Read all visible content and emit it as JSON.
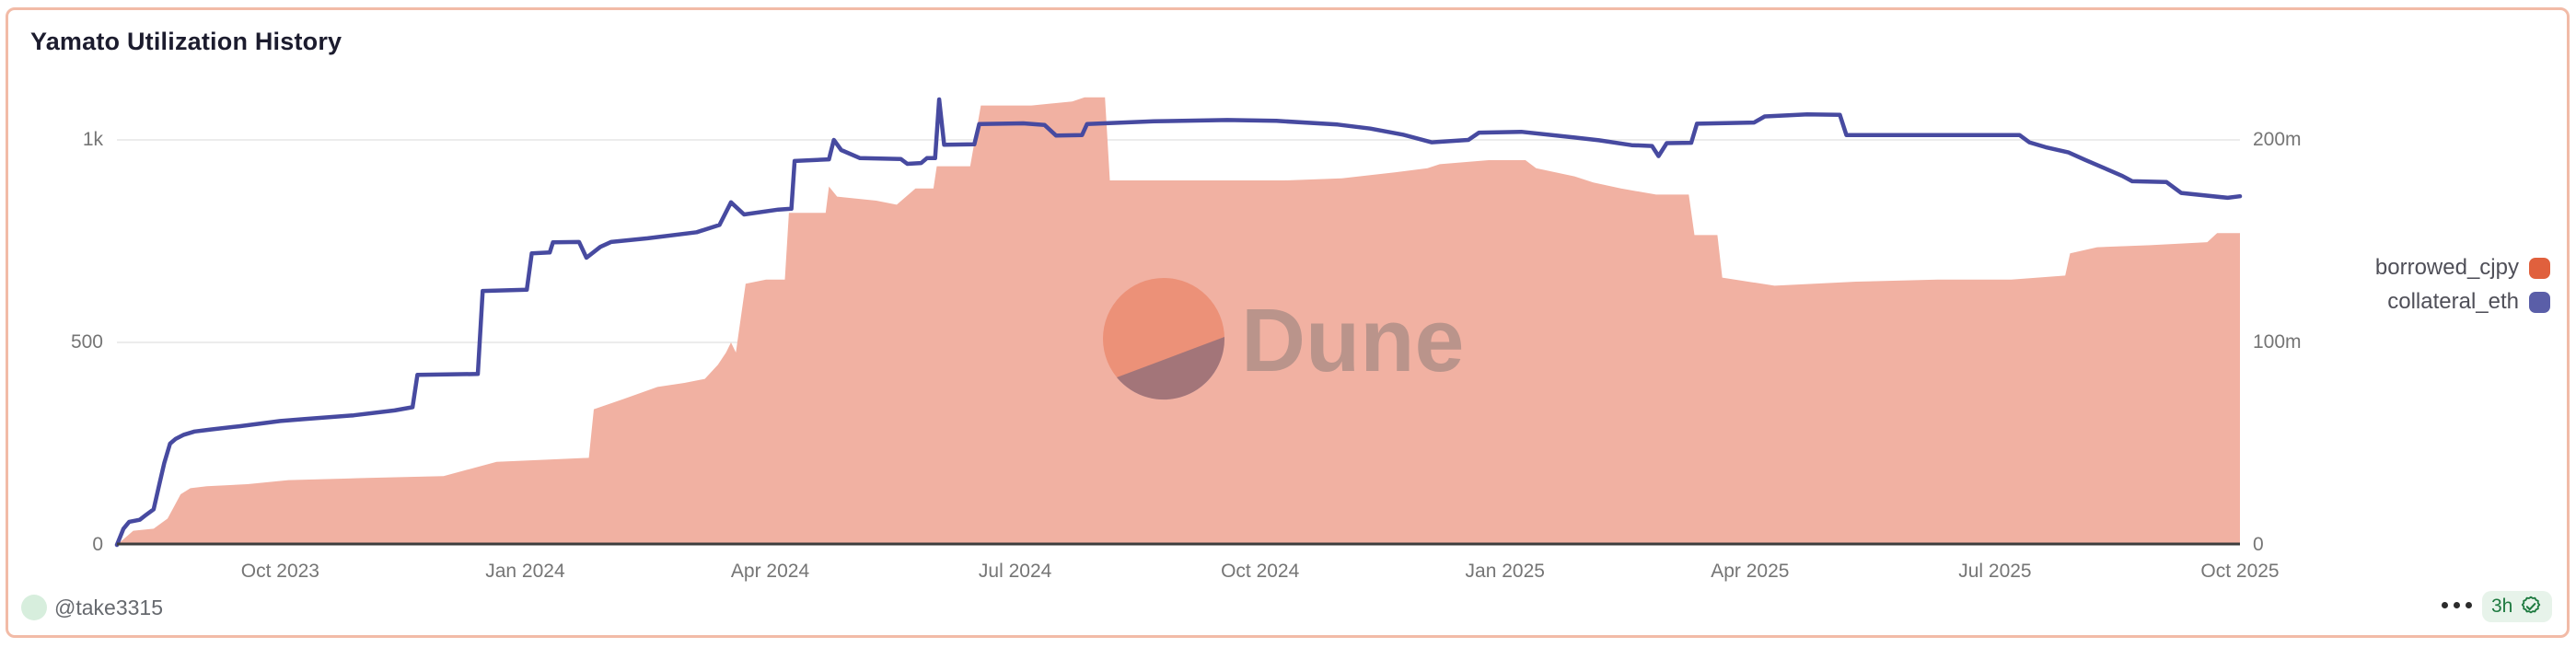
{
  "card": {
    "title": "Yamato Utilization History"
  },
  "watermark": {
    "label": "Dune"
  },
  "footer": {
    "author_handle": "@take3315",
    "badge": {
      "age": "3h",
      "icon": "verified-seal-check-icon"
    }
  },
  "legend": [
    {
      "label": "borrowed_cjpy",
      "color": "#e0603d"
    },
    {
      "label": "collateral_eth",
      "color": "#5a5ea8"
    }
  ],
  "colors": {
    "card_border": "#f2bba7",
    "area_fill": "#f1b1a2",
    "line_stroke": "#474aa0",
    "gridline": "#ececec",
    "axis_line": "#3d3d3d",
    "axis_text": "#757575",
    "badge_green": "#1e7a40",
    "badge_bg": "#e7f3ea",
    "avatar_bg": "#d7eedd"
  },
  "chart_data": {
    "type": "area",
    "title": "Yamato Utilization History",
    "x_axis_kind": "time",
    "x_unit": "months since Aug 2023",
    "x_range_months": [
      0,
      26
    ],
    "grid": true,
    "legend_position": "right",
    "x_ticks": [
      {
        "m": 2,
        "label": "Oct 2023"
      },
      {
        "m": 5,
        "label": "Jan 2024"
      },
      {
        "m": 8,
        "label": "Apr 2024"
      },
      {
        "m": 11,
        "label": "Jul 2024"
      },
      {
        "m": 14,
        "label": "Oct 2024"
      },
      {
        "m": 17,
        "label": "Jan 2025"
      },
      {
        "m": 20,
        "label": "Apr 2025"
      },
      {
        "m": 23,
        "label": "Jul 2025"
      },
      {
        "m": 26,
        "label": "Oct 2025"
      }
    ],
    "left_axis": {
      "max": 1000,
      "ticks": [
        {
          "v": 0,
          "label": "0"
        },
        {
          "v": 500,
          "label": "500"
        },
        {
          "v": 1000,
          "label": "1k"
        }
      ]
    },
    "right_axis": {
      "max": 200,
      "unit": "millions",
      "ticks": [
        {
          "v": 0,
          "label": "0"
        },
        {
          "v": 100,
          "label": "100m"
        },
        {
          "v": 200,
          "label": "200m"
        }
      ]
    },
    "series": [
      {
        "name": "borrowed_cjpy",
        "type": "area",
        "axis": "right",
        "fill": "#f1b1a2",
        "points": [
          [
            0,
            0
          ],
          [
            0.2,
            7
          ],
          [
            0.45,
            8
          ],
          [
            0.62,
            13
          ],
          [
            0.7,
            19
          ],
          [
            0.78,
            25
          ],
          [
            0.9,
            28
          ],
          [
            1.1,
            29
          ],
          [
            1.6,
            30
          ],
          [
            2.1,
            32
          ],
          [
            3.0,
            33
          ],
          [
            4.0,
            34
          ],
          [
            4.65,
            41
          ],
          [
            5.2,
            42
          ],
          [
            5.78,
            43
          ],
          [
            5.84,
            67
          ],
          [
            6.2,
            72
          ],
          [
            6.62,
            78
          ],
          [
            6.95,
            80
          ],
          [
            7.2,
            82
          ],
          [
            7.36,
            89
          ],
          [
            7.46,
            95
          ],
          [
            7.52,
            100
          ],
          [
            7.58,
            95
          ],
          [
            7.7,
            129
          ],
          [
            7.95,
            131
          ],
          [
            8.18,
            131
          ],
          [
            8.23,
            164
          ],
          [
            8.68,
            164
          ],
          [
            8.72,
            177
          ],
          [
            8.82,
            172
          ],
          [
            9.3,
            170
          ],
          [
            9.55,
            168
          ],
          [
            9.78,
            176
          ],
          [
            10.0,
            176
          ],
          [
            10.04,
            187
          ],
          [
            10.45,
            187
          ],
          [
            10.58,
            217
          ],
          [
            11.2,
            217
          ],
          [
            11.7,
            219
          ],
          [
            11.85,
            221
          ],
          [
            12.1,
            221
          ],
          [
            12.16,
            180
          ],
          [
            13.2,
            180
          ],
          [
            14.3,
            180
          ],
          [
            15.0,
            181
          ],
          [
            15.65,
            184
          ],
          [
            16.05,
            186
          ],
          [
            16.2,
            188
          ],
          [
            16.8,
            190
          ],
          [
            17.25,
            190
          ],
          [
            17.38,
            186
          ],
          [
            17.85,
            182
          ],
          [
            18.08,
            179
          ],
          [
            18.42,
            176
          ],
          [
            18.85,
            173
          ],
          [
            19.25,
            173
          ],
          [
            19.32,
            153
          ],
          [
            19.6,
            153
          ],
          [
            19.66,
            132
          ],
          [
            20.3,
            128
          ],
          [
            21.3,
            130
          ],
          [
            22.3,
            131
          ],
          [
            23.2,
            131
          ],
          [
            23.86,
            133
          ],
          [
            23.92,
            144
          ],
          [
            24.25,
            147
          ],
          [
            24.9,
            148
          ],
          [
            25.6,
            149.5
          ],
          [
            25.72,
            154
          ],
          [
            26,
            154
          ]
        ]
      },
      {
        "name": "collateral_eth",
        "type": "line",
        "axis": "left",
        "stroke": "#474aa0",
        "points": [
          [
            0,
            0
          ],
          [
            0.08,
            40
          ],
          [
            0.15,
            57
          ],
          [
            0.28,
            62
          ],
          [
            0.35,
            73
          ],
          [
            0.45,
            88
          ],
          [
            0.52,
            150
          ],
          [
            0.58,
            202
          ],
          [
            0.65,
            250
          ],
          [
            0.72,
            262
          ],
          [
            0.82,
            272
          ],
          [
            0.95,
            280
          ],
          [
            1.15,
            285
          ],
          [
            1.5,
            293
          ],
          [
            2.0,
            306
          ],
          [
            2.3,
            311
          ],
          [
            2.9,
            320
          ],
          [
            3.4,
            332
          ],
          [
            3.62,
            340
          ],
          [
            3.68,
            420
          ],
          [
            4.42,
            422
          ],
          [
            4.48,
            627
          ],
          [
            5.02,
            630
          ],
          [
            5.08,
            720
          ],
          [
            5.3,
            722
          ],
          [
            5.34,
            747
          ],
          [
            5.66,
            748
          ],
          [
            5.75,
            709
          ],
          [
            5.92,
            736
          ],
          [
            6.05,
            748
          ],
          [
            6.5,
            757
          ],
          [
            7.1,
            772
          ],
          [
            7.38,
            790
          ],
          [
            7.52,
            846
          ],
          [
            7.68,
            816
          ],
          [
            8.1,
            828
          ],
          [
            8.26,
            830
          ],
          [
            8.3,
            948
          ],
          [
            8.72,
            952
          ],
          [
            8.78,
            1000
          ],
          [
            8.87,
            975
          ],
          [
            9.1,
            955
          ],
          [
            9.6,
            953
          ],
          [
            9.68,
            941
          ],
          [
            9.85,
            943
          ],
          [
            9.92,
            955
          ],
          [
            10.02,
            955
          ],
          [
            10.07,
            1100
          ],
          [
            10.13,
            988
          ],
          [
            10.5,
            989
          ],
          [
            10.56,
            1039
          ],
          [
            11.1,
            1041
          ],
          [
            11.36,
            1037
          ],
          [
            11.5,
            1011
          ],
          [
            11.82,
            1012
          ],
          [
            11.88,
            1039
          ],
          [
            12.7,
            1046
          ],
          [
            13.6,
            1049
          ],
          [
            14.2,
            1047
          ],
          [
            14.95,
            1038
          ],
          [
            15.35,
            1028
          ],
          [
            15.75,
            1013
          ],
          [
            16.1,
            994
          ],
          [
            16.55,
            1000
          ],
          [
            16.68,
            1018
          ],
          [
            17.2,
            1020
          ],
          [
            17.85,
            1006
          ],
          [
            18.15,
            999
          ],
          [
            18.55,
            987
          ],
          [
            18.8,
            985
          ],
          [
            18.88,
            960
          ],
          [
            18.98,
            992
          ],
          [
            19.28,
            993
          ],
          [
            19.35,
            1040
          ],
          [
            20.05,
            1043
          ],
          [
            20.18,
            1058
          ],
          [
            20.7,
            1063
          ],
          [
            21.1,
            1062
          ],
          [
            21.18,
            1012
          ],
          [
            23.3,
            1012
          ],
          [
            23.42,
            994
          ],
          [
            23.62,
            982
          ],
          [
            23.9,
            969
          ],
          [
            24.1,
            951
          ],
          [
            24.32,
            932
          ],
          [
            24.56,
            911
          ],
          [
            24.68,
            898
          ],
          [
            25.1,
            896
          ],
          [
            25.28,
            869
          ],
          [
            25.85,
            857
          ],
          [
            26,
            861
          ]
        ]
      }
    ]
  }
}
